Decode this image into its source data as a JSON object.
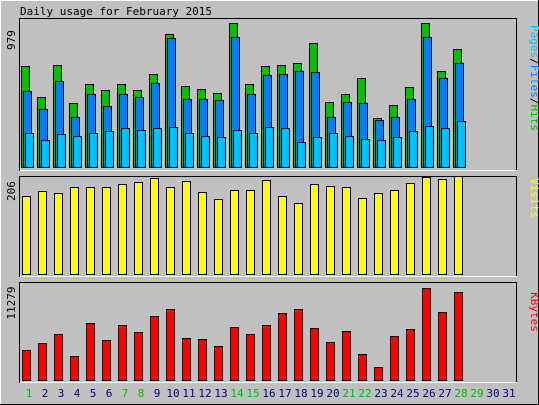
{
  "title": "Daily usage for February 2015",
  "colors": {
    "background": "#c0c0c0",
    "hits": "#00c000",
    "files": "#0080ff",
    "pages": "#00c0ff",
    "visits": "#ffff00",
    "kbytes": "#ff0000",
    "weekend": "#00c000",
    "weekday": "#000080"
  },
  "chart_data": [
    {
      "type": "bar",
      "categories": [
        "1",
        "2",
        "3",
        "4",
        "5",
        "6",
        "7",
        "8",
        "9",
        "10",
        "11",
        "12",
        "13",
        "14",
        "15",
        "16",
        "17",
        "18",
        "19",
        "20",
        "21",
        "22",
        "23",
        "24",
        "25",
        "26",
        "27",
        "28",
        "29",
        "30",
        "31"
      ],
      "weekend_days": [
        1,
        7,
        8,
        14,
        15,
        21,
        22,
        28,
        29
      ],
      "axis_max_label": "979",
      "ylim": [
        0,
        979
      ],
      "series": [
        {
          "name": "Hits",
          "values": [
            680,
            470,
            690,
            430,
            560,
            520,
            560,
            520,
            630,
            900,
            550,
            530,
            500,
            970,
            560,
            680,
            690,
            700,
            840,
            440,
            490,
            600,
            330,
            420,
            540,
            970,
            650,
            800,
            null,
            null,
            null
          ]
        },
        {
          "name": "Files",
          "values": [
            510,
            390,
            580,
            340,
            490,
            410,
            490,
            470,
            570,
            870,
            460,
            460,
            450,
            880,
            490,
            620,
            630,
            650,
            640,
            340,
            440,
            430,
            320,
            340,
            460,
            880,
            600,
            700,
            null,
            null,
            null
          ]
        },
        {
          "name": "Pages",
          "values": [
            230,
            180,
            220,
            210,
            230,
            240,
            260,
            250,
            260,
            270,
            230,
            210,
            200,
            250,
            230,
            270,
            260,
            170,
            200,
            230,
            210,
            190,
            180,
            200,
            240,
            280,
            260,
            310,
            null,
            null,
            null
          ]
        }
      ],
      "legend_labels": [
        "Pages",
        "Files",
        "Hits"
      ]
    },
    {
      "type": "bar",
      "categories": [
        "1",
        "2",
        "3",
        "4",
        "5",
        "6",
        "7",
        "8",
        "9",
        "10",
        "11",
        "12",
        "13",
        "14",
        "15",
        "16",
        "17",
        "18",
        "19",
        "20",
        "21",
        "22",
        "23",
        "24",
        "25",
        "26",
        "27",
        "28",
        "29",
        "30",
        "31"
      ],
      "axis_max_label": "206",
      "ylim": [
        0,
        206
      ],
      "series": [
        {
          "name": "Visits",
          "values": [
            172,
            182,
            177,
            190,
            190,
            190,
            197,
            201,
            211,
            191,
            204,
            180,
            165,
            183,
            185,
            205,
            172,
            155,
            197,
            193,
            190,
            167,
            178,
            184,
            200,
            213,
            208,
            214,
            null,
            null,
            null
          ]
        }
      ],
      "legend_labels": [
        "Visits"
      ]
    },
    {
      "type": "bar",
      "categories": [
        "1",
        "2",
        "3",
        "4",
        "5",
        "6",
        "7",
        "8",
        "9",
        "10",
        "11",
        "12",
        "13",
        "14",
        "15",
        "16",
        "17",
        "18",
        "19",
        "20",
        "21",
        "22",
        "23",
        "24",
        "25",
        "26",
        "27",
        "28",
        "29",
        "30",
        "31"
      ],
      "axis_max_label": "11279",
      "ylim": [
        0,
        11279
      ],
      "series": [
        {
          "name": "KBytes",
          "values": [
            3640,
            4460,
            5530,
            2850,
            6870,
            4780,
            6620,
            5770,
            7670,
            8530,
            5060,
            4940,
            4130,
            6370,
            5460,
            6540,
            8040,
            8470,
            6200,
            4540,
            5850,
            3130,
            1570,
            5230,
            6170,
            11050,
            8190,
            10560,
            null,
            null,
            null
          ]
        }
      ],
      "legend_labels": [
        "KBytes"
      ]
    }
  ]
}
